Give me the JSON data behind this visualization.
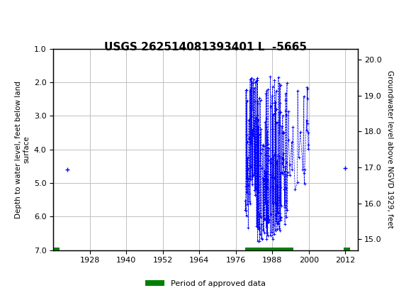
{
  "title": "USGS 262514081393401 L  -5665",
  "ylabel_left": "Depth to water level, feet below land\nsurface",
  "ylabel_right": "Groundwater level above NGVD 1929, feet",
  "xlabel": "",
  "xlim": [
    1916,
    2016
  ],
  "ylim_left": [
    1.0,
    7.0
  ],
  "ylim_right": [
    14.7,
    20.3
  ],
  "xticks": [
    1928,
    1940,
    1952,
    1964,
    1976,
    1988,
    2000,
    2012
  ],
  "yticks_left": [
    1.0,
    2.0,
    3.0,
    4.0,
    5.0,
    6.0,
    7.0
  ],
  "yticks_right": [
    15.0,
    16.0,
    17.0,
    18.0,
    19.0,
    20.0
  ],
  "header_color": "#1a6b3c",
  "data_color": "#0000ff",
  "approved_color": "#008000",
  "approved_period_start": 1979,
  "approved_period_end": 1995,
  "isolated_point_x": 1920.5,
  "isolated_point_y": 4.6,
  "isolated_point2_x": 2012,
  "isolated_point2_y": 4.55,
  "grid_color": "#c0c0c0",
  "background_color": "#ffffff"
}
